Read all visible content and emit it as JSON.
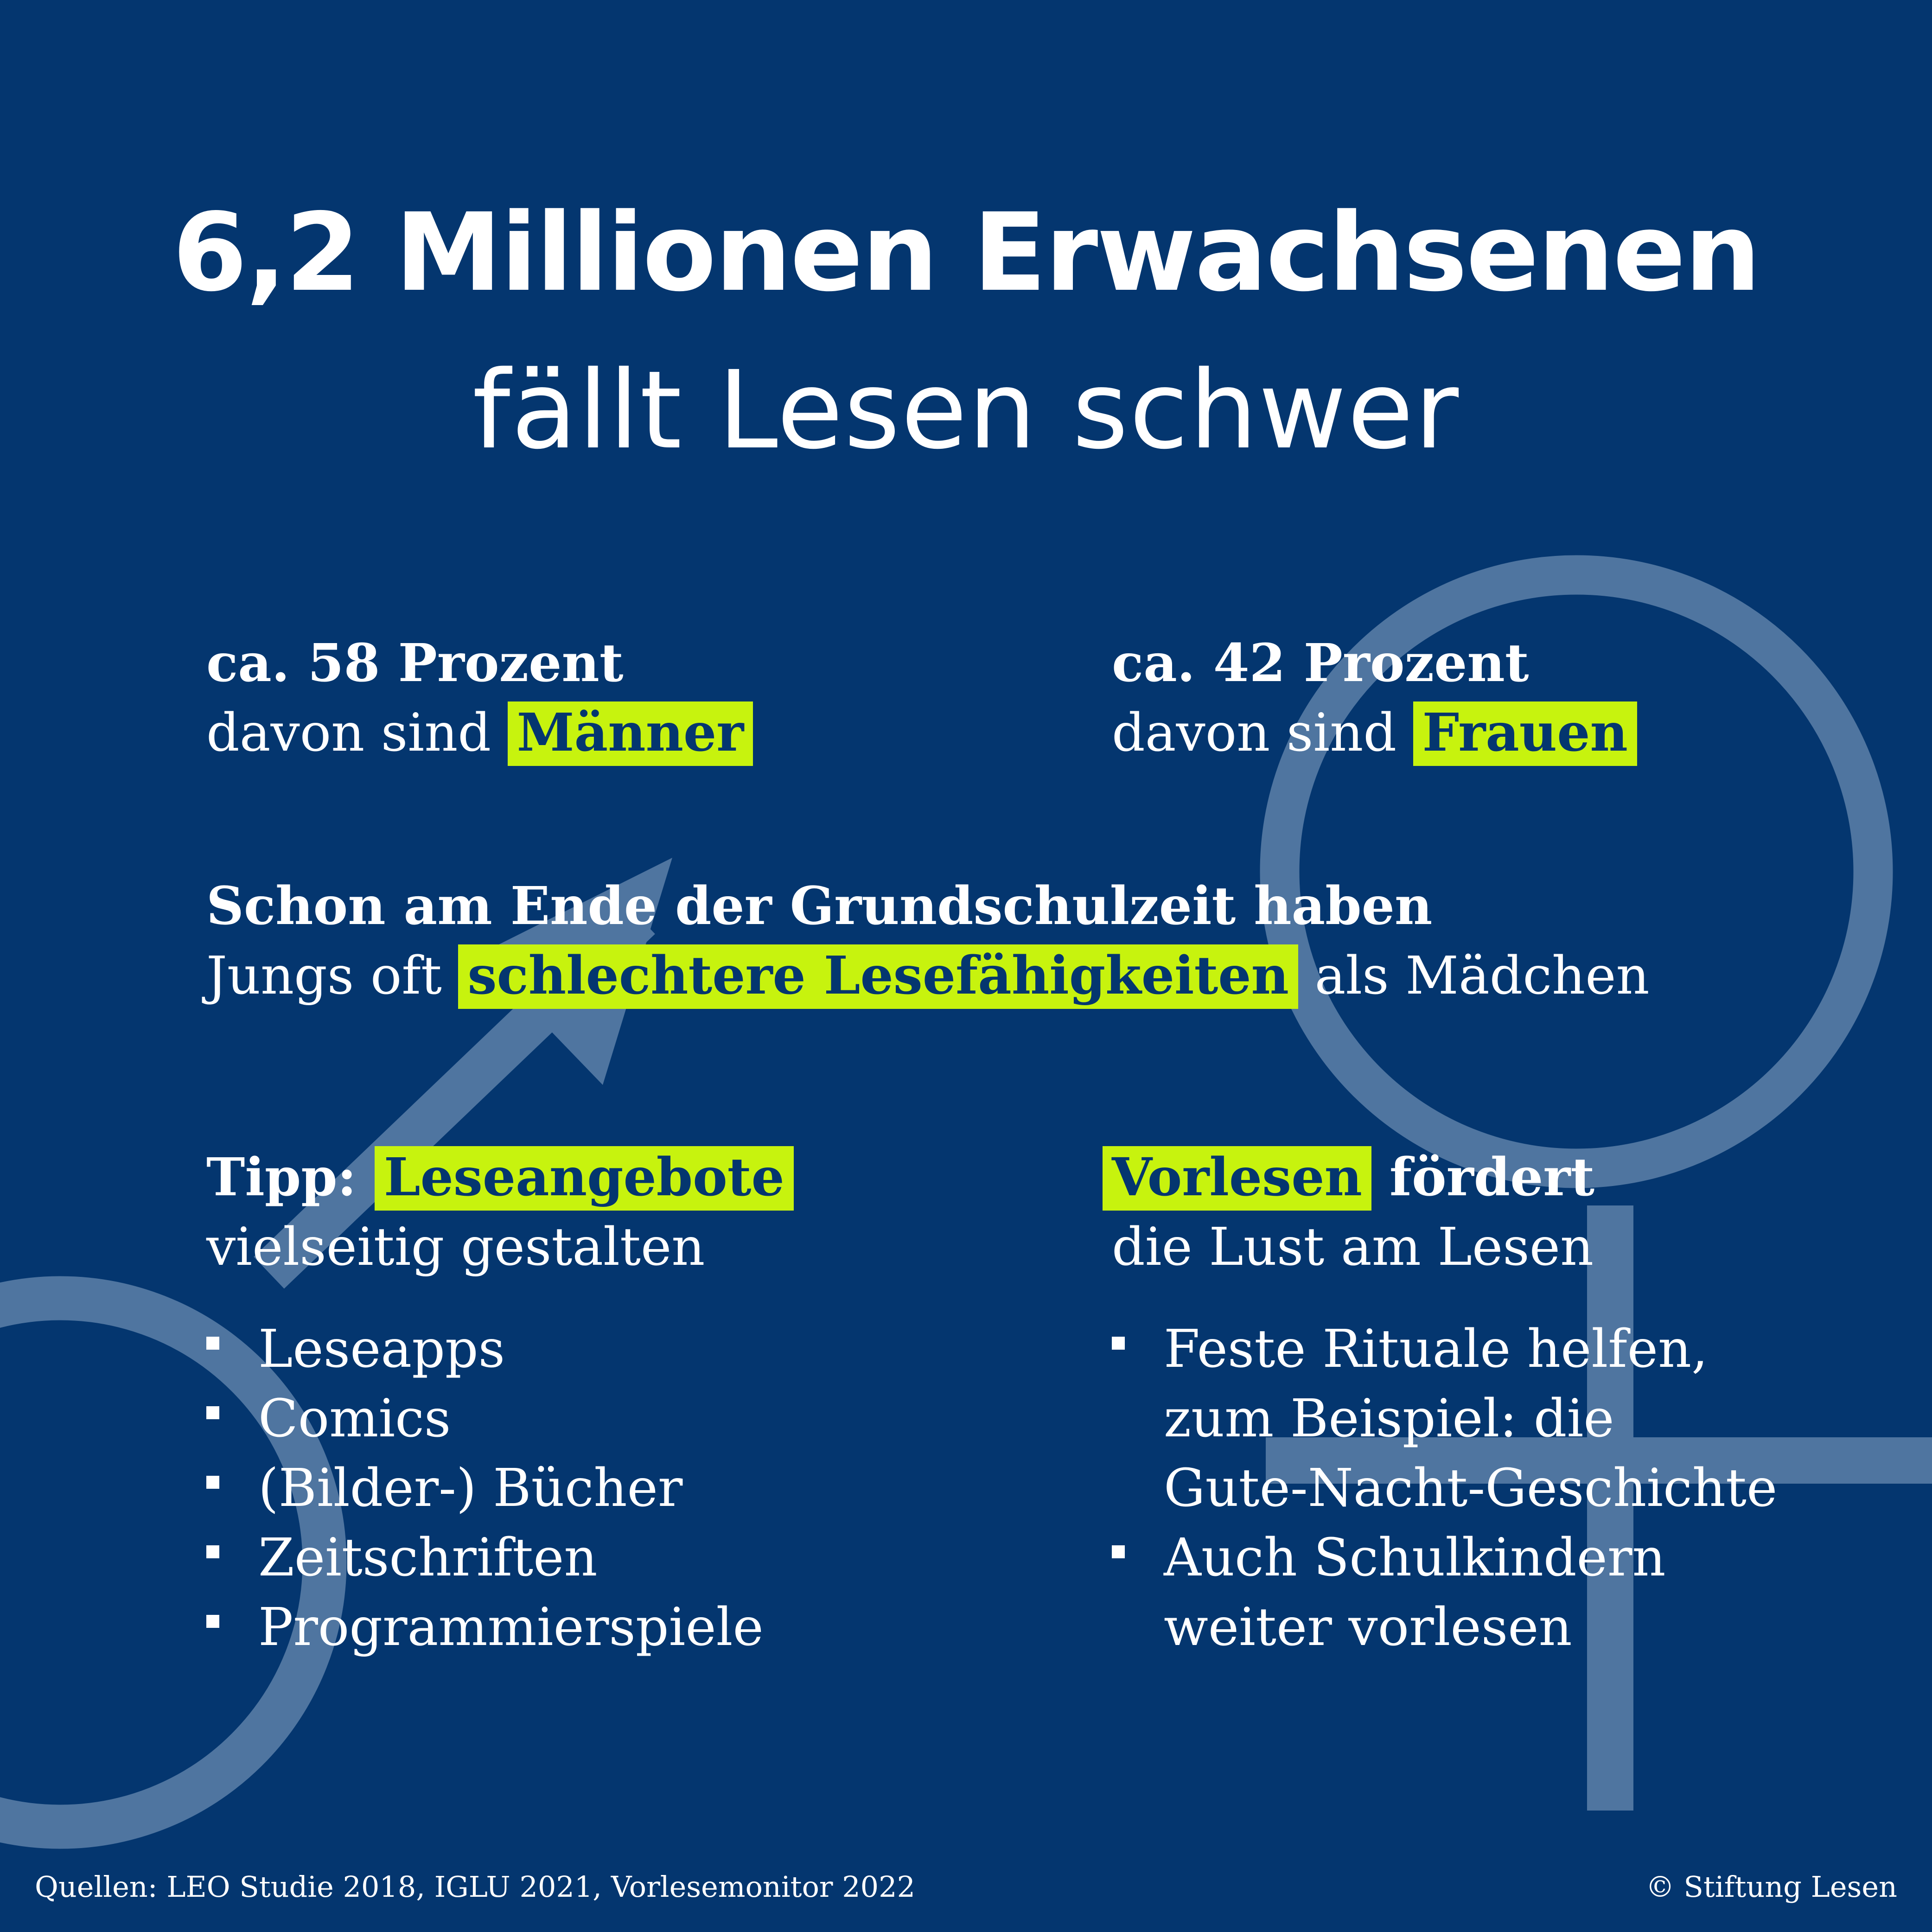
{
  "headline": {
    "line1": "6,2 Millionen Erwachsenen",
    "line2": "fällt Lesen schwer"
  },
  "men_stat": {
    "value": "ca. 58 Prozent",
    "text": "davon sind ",
    "highlight": "Männer"
  },
  "women_stat": {
    "value": "ca. 42 Prozent",
    "text": "davon sind ",
    "highlight": "Frauen"
  },
  "school": {
    "bold": "Schon am Ende der Grundschulzeit haben",
    "pre": "Jungs oft ",
    "highlight": "schlechtere Lesefähigkeiten",
    "post": " als Mädchen"
  },
  "tip": {
    "label": "Tipp:",
    "highlight": "Leseangebote",
    "text": "vielseitig gestalten",
    "items": [
      "Leseapps",
      "Comics",
      "(Bilder-) Bücher",
      "Zeitschriften",
      "Programmierspiele"
    ]
  },
  "reading_aloud": {
    "highlight": "Vorlesen",
    "bold": " fördert",
    "text": "die Lust am Lesen",
    "items": [
      [
        "Feste Rituale helfen,",
        "zum Beispiel: die",
        "Gute-Nacht-Geschichte"
      ],
      [
        "Auch Schulkindern",
        "weiter vorlesen"
      ]
    ]
  },
  "footer": {
    "sources": "Quellen: LEO Studie 2018, IGLU 2021, Vorlesemonitor 2022",
    "copyright": "© Stiftung Lesen"
  },
  "colors": {
    "background": "#04366f",
    "highlight": "#c7f30e",
    "symbol": "#4f75a0",
    "text": "#ffffff"
  },
  "icons": [
    "male-symbol-icon",
    "female-symbol-icon"
  ]
}
